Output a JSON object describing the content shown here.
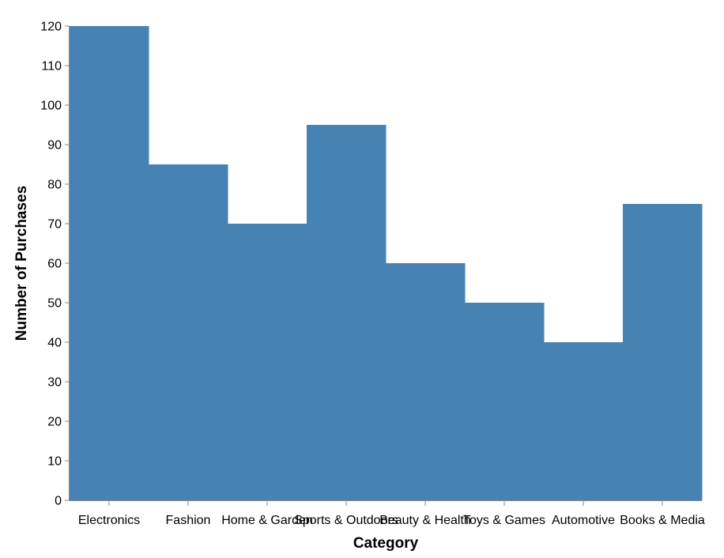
{
  "chart_data": {
    "type": "area",
    "categories": [
      "Electronics",
      "Fashion",
      "Home & Garden",
      "Sports & Outdoors",
      "Beauty & Health",
      "Toys & Games",
      "Automotive",
      "Books & Media"
    ],
    "values": [
      120,
      85,
      70,
      95,
      60,
      50,
      40,
      75
    ],
    "xlabel": "Category",
    "ylabel": "Number of Purchases",
    "ylim": [
      0,
      120
    ],
    "yticks": [
      0,
      10,
      20,
      30,
      40,
      50,
      60,
      70,
      80,
      90,
      100,
      110,
      120
    ],
    "interpolation": "step",
    "grid": false,
    "colors": {
      "fill": "#4682b4",
      "axis": "#888888"
    }
  }
}
